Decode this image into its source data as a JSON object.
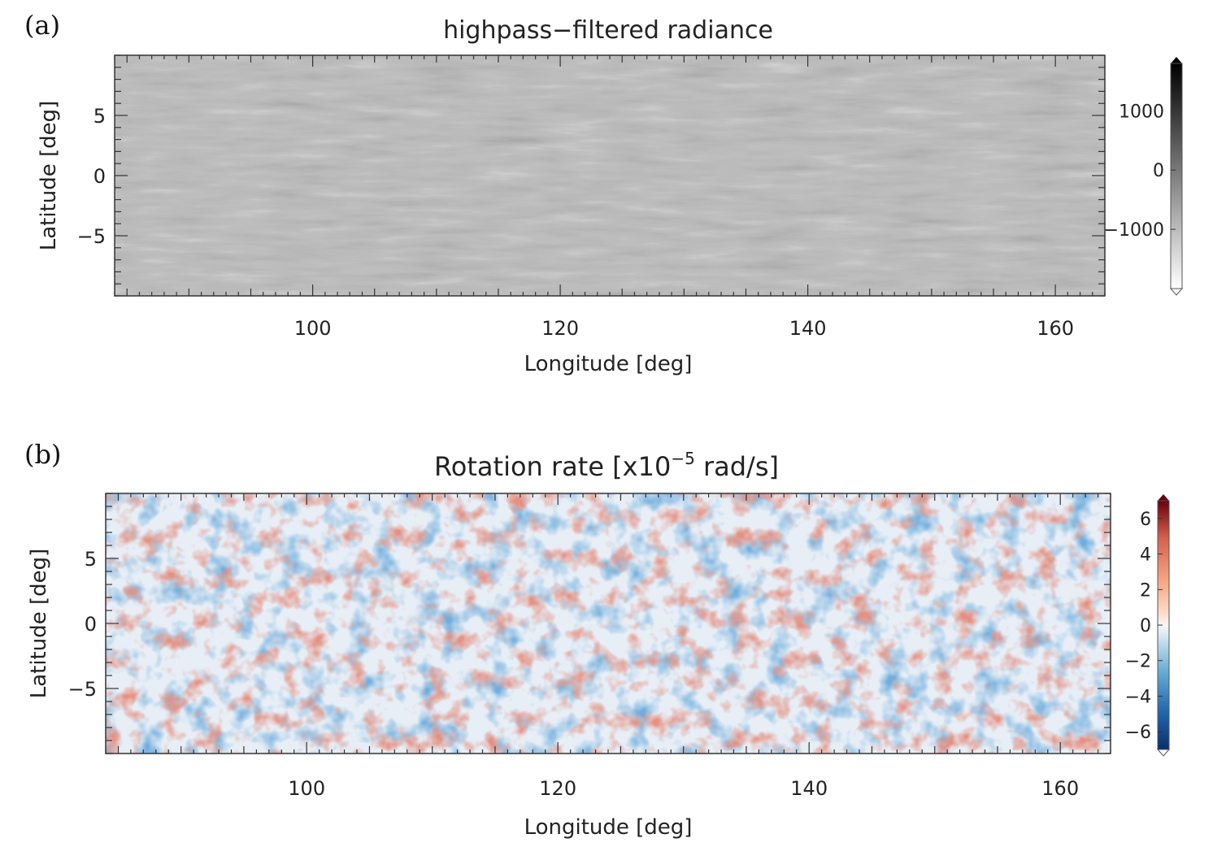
{
  "chart_data": [
    {
      "panel_label": "(a)",
      "type": "heatmap",
      "title": "highpass−filtered radiance",
      "xlabel": "Longitude [deg]",
      "ylabel": "Latitude [deg]",
      "xlim": [
        84,
        164
      ],
      "ylim": [
        -10,
        10
      ],
      "xticks": [
        100,
        120,
        140,
        160
      ],
      "xtick_labels": [
        "100",
        "120",
        "140",
        "160"
      ],
      "yticks": [
        -5,
        0,
        5
      ],
      "ytick_labels": [
        "−5",
        "0",
        "5"
      ],
      "colorbar": {
        "range": [
          -2000,
          1800
        ],
        "ticks": [
          -1000,
          0,
          1000
        ],
        "tick_labels": [
          "−1000",
          "0",
          "1000"
        ],
        "colormap": "grayscale",
        "color_low": "#ffffff",
        "color_high": "#000000"
      }
    },
    {
      "panel_label": "(b)",
      "type": "heatmap",
      "title_main": "Rotation rate [x10",
      "title_exp": "−5",
      "title_tail": " rad/s]",
      "xlabel": "Longitude [deg]",
      "ylabel": "Latitude [deg]",
      "xlim": [
        84,
        164
      ],
      "ylim": [
        -10,
        10
      ],
      "xticks": [
        100,
        120,
        140,
        160
      ],
      "xtick_labels": [
        "100",
        "120",
        "140",
        "160"
      ],
      "yticks": [
        -5,
        0,
        5
      ],
      "ytick_labels": [
        "−5",
        "0",
        "5"
      ],
      "colorbar": {
        "range": [
          -7,
          7
        ],
        "ticks": [
          -6,
          -4,
          -2,
          0,
          2,
          4,
          6
        ],
        "tick_labels": [
          "−6",
          "−4",
          "−2",
          "0",
          "2",
          "4",
          "6"
        ],
        "colormap": "diverging blue-white-red",
        "color_low": "#08306b",
        "color_mid": "#f7f7f7",
        "color_high": "#67000d"
      }
    }
  ]
}
